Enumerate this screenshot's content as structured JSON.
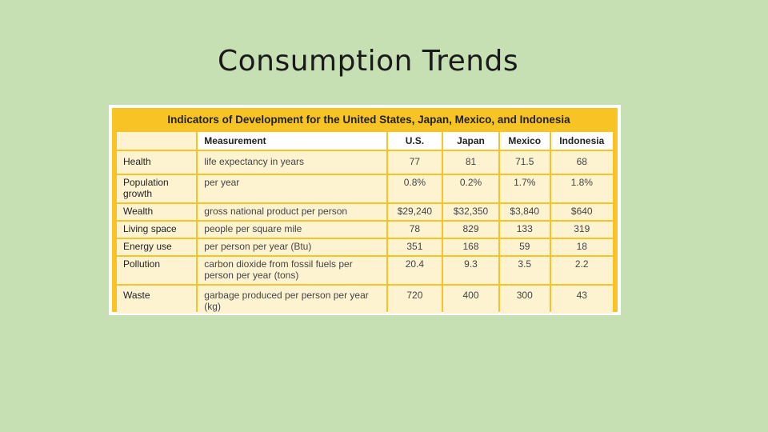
{
  "slide": {
    "title": "Consumption Trends"
  },
  "table": {
    "caption": "Indicators of Development for the United States, Japan, Mexico, and Indonesia",
    "headers": [
      "",
      "Measurement",
      "U.S.",
      "Japan",
      "Mexico",
      "Indonesia"
    ],
    "rows": [
      {
        "category": "Health",
        "measurement": "life expectancy in years",
        "us": "77",
        "japan": "81",
        "mexico": "71.5",
        "indonesia": "68"
      },
      {
        "category": "Population growth",
        "measurement": "per year",
        "us": "0.8%",
        "japan": "0.2%",
        "mexico": "1.7%",
        "indonesia": "1.8%"
      },
      {
        "category": "Wealth",
        "measurement": "gross national product per person",
        "us": "$29,240",
        "japan": "$32,350",
        "mexico": "$3,840",
        "indonesia": "$640"
      },
      {
        "category": "Living space",
        "measurement": "people per square mile",
        "us": "78",
        "japan": "829",
        "mexico": "133",
        "indonesia": "319"
      },
      {
        "category": "Energy use",
        "measurement": "per person per year (Btu)",
        "us": "351",
        "japan": "168",
        "mexico": "59",
        "indonesia": "18"
      },
      {
        "category": "Pollution",
        "measurement": "carbon dioxide from fossil fuels per person per year (tons)",
        "us": "20.4",
        "japan": "9.3",
        "mexico": "3.5",
        "indonesia": "2.2"
      },
      {
        "category": "Waste",
        "measurement": "garbage produced per person per year (kg)",
        "us": "720",
        "japan": "400",
        "mexico": "300",
        "indonesia": "43"
      }
    ]
  }
}
